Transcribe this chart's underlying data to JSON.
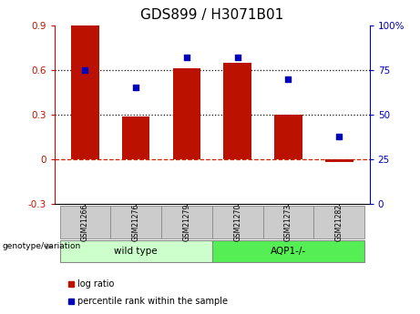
{
  "title": "GDS899 / H3071B01",
  "samples": [
    "GSM21266",
    "GSM21276",
    "GSM21279",
    "GSM21270",
    "GSM21273",
    "GSM21282"
  ],
  "log_ratio": [
    0.9,
    0.29,
    0.61,
    0.65,
    0.3,
    -0.02
  ],
  "percentile_rank": [
    75,
    65,
    82,
    82,
    70,
    38
  ],
  "groups": [
    {
      "label": "wild type",
      "indices": [
        0,
        1,
        2
      ],
      "color": "#ccffcc"
    },
    {
      "label": "AQP1-/-",
      "indices": [
        3,
        4,
        5
      ],
      "color": "#55ee55"
    }
  ],
  "bar_color": "#bb1100",
  "dot_color": "#0000bb",
  "ylim_left": [
    -0.3,
    0.9
  ],
  "ylim_right": [
    0,
    100
  ],
  "yticks_left": [
    -0.3,
    0,
    0.3,
    0.6,
    0.9
  ],
  "yticks_right": [
    0,
    25,
    50,
    75,
    100
  ],
  "hlines": [
    0.3,
    0.6
  ],
  "hline_zero_color": "#cc2200",
  "hline_dotted_color": "#111111",
  "bar_width": 0.55,
  "title_fontsize": 11,
  "tick_fontsize": 7.5,
  "group_label": "genotype/variation",
  "legend_items": [
    "log ratio",
    "percentile rank within the sample"
  ]
}
